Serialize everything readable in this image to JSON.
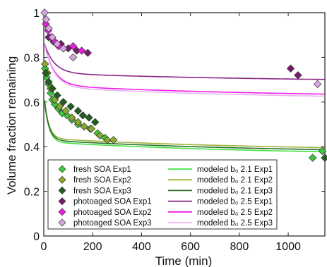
{
  "chart_data": {
    "type": "scatter",
    "title": "",
    "xlabel": "Time (min)",
    "ylabel": "Volume fraction remaining",
    "xlim": [
      0,
      1150
    ],
    "ylim": [
      0,
      1.0
    ],
    "xticks": [
      0,
      200,
      400,
      600,
      800,
      1000
    ],
    "yticks": [
      0,
      0.2,
      0.4,
      0.6,
      0.8,
      1
    ],
    "grid": false,
    "legend_position": "bottom-center",
    "scatter_series": [
      {
        "name": "fresh SOA Exp1",
        "color": "#3ec93e",
        "points": [
          [
            5,
            0.75
          ],
          [
            12,
            0.71
          ],
          [
            20,
            0.68
          ],
          [
            28,
            0.64
          ],
          [
            35,
            0.61
          ],
          [
            45,
            0.59
          ],
          [
            60,
            0.57
          ],
          [
            75,
            0.55
          ],
          [
            95,
            0.54
          ],
          [
            115,
            0.52
          ],
          [
            140,
            0.5
          ],
          [
            165,
            0.49
          ],
          [
            190,
            0.48
          ],
          [
            220,
            0.46
          ],
          [
            250,
            0.44
          ],
          [
            1100,
            0.35
          ],
          [
            1140,
            0.38
          ]
        ]
      },
      {
        "name": "fresh SOA Exp2",
        "color": "#8aa82e",
        "points": [
          [
            5,
            0.77
          ],
          [
            15,
            0.73
          ],
          [
            28,
            0.66
          ],
          [
            45,
            0.61
          ],
          [
            65,
            0.58
          ],
          [
            90,
            0.56
          ],
          [
            115,
            0.53
          ],
          [
            140,
            0.51
          ],
          [
            165,
            0.49
          ],
          [
            195,
            0.48
          ],
          [
            230,
            0.45
          ],
          [
            260,
            0.43
          ],
          [
            285,
            0.43
          ]
        ]
      },
      {
        "name": "fresh SOA Exp3",
        "color": "#1f5f1f",
        "points": [
          [
            8,
            0.73
          ],
          [
            20,
            0.69
          ],
          [
            35,
            0.66
          ],
          [
            55,
            0.63
          ],
          [
            80,
            0.6
          ],
          [
            110,
            0.58
          ],
          [
            140,
            0.56
          ],
          [
            160,
            0.54
          ],
          [
            185,
            0.53
          ],
          [
            210,
            0.51
          ],
          [
            1150,
            0.35
          ]
        ]
      },
      {
        "name": "photoaged SOA Exp1",
        "color": "#7a1a72",
        "points": [
          [
            20,
            0.89
          ],
          [
            40,
            0.87
          ],
          [
            70,
            0.86
          ],
          [
            100,
            0.84
          ],
          [
            135,
            0.83
          ],
          [
            180,
            0.82
          ],
          [
            1010,
            0.75
          ],
          [
            1040,
            0.72
          ]
        ]
      },
      {
        "name": "photoaged SOA Exp2",
        "color": "#e91ee0",
        "points": [
          [
            8,
            0.95
          ],
          [
            18,
            0.92
          ],
          [
            30,
            0.89
          ],
          [
            45,
            0.87
          ],
          [
            60,
            0.85
          ],
          [
            80,
            0.84
          ],
          [
            120,
            0.85
          ],
          [
            155,
            0.83
          ]
        ]
      },
      {
        "name": "photoaged SOA Exp3",
        "color": "#d4a8dc",
        "points": [
          [
            3,
            1.0
          ],
          [
            10,
            0.97
          ],
          [
            20,
            0.93
          ],
          [
            35,
            0.89
          ],
          [
            55,
            0.86
          ],
          [
            80,
            0.84
          ],
          [
            120,
            0.8
          ],
          [
            1120,
            0.68
          ]
        ]
      }
    ],
    "model_series": [
      {
        "name": "modeled b₀ 2.1 Exp1",
        "color": "#3ee43e",
        "y0": 0.64,
        "yinf": 0.36,
        "tau": 18,
        "k": 0.00012
      },
      {
        "name": "modeled b₀ 2.1 Exp2",
        "color": "#9bb53a",
        "y0": 0.64,
        "yinf": 0.38,
        "tau": 18,
        "k": 0.00012
      },
      {
        "name": "modeled b₀ 2.1 Exp3",
        "color": "#2a6e2a",
        "y0": 0.64,
        "yinf": 0.37,
        "tau": 18,
        "k": 0.00012
      },
      {
        "name": "modeled b₀ 2.5 Exp1",
        "color": "#8a2585",
        "y0": 0.87,
        "yinf": 0.69,
        "tau": 40,
        "k": 0.00012
      },
      {
        "name": "modeled b₀ 2.5 Exp2",
        "color": "#ee1ee8",
        "y0": 0.87,
        "yinf": 0.62,
        "tau": 40,
        "k": 0.00012
      },
      {
        "name": "modeled b₀ 2.5 Exp3",
        "color": "#e7b6ee",
        "y0": 0.87,
        "yinf": 0.61,
        "tau": 40,
        "k": 0.00012
      }
    ]
  }
}
